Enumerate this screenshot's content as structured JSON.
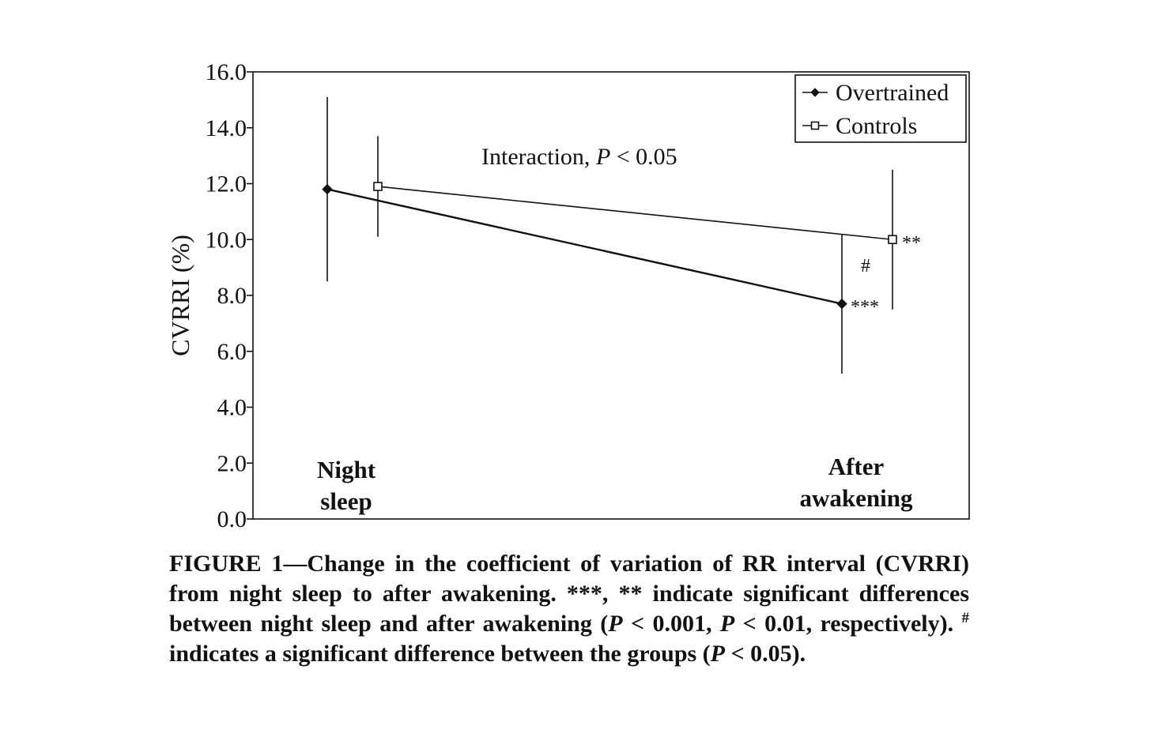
{
  "chart_data": {
    "type": "line",
    "ylabel": "CVRRI (%)",
    "ylim": [
      0,
      16
    ],
    "yticks": [
      "0.0",
      "2.0",
      "4.0",
      "6.0",
      "8.0",
      "10.0",
      "12.0",
      "14.0",
      "16.0"
    ],
    "categories": [
      "Night sleep",
      "After awakening"
    ],
    "category_labels": [
      [
        "Night",
        "sleep"
      ],
      [
        "After",
        "awakening"
      ]
    ],
    "series": [
      {
        "name": "Overtrained",
        "marker": "filled-diamond",
        "values": [
          11.8,
          7.7
        ],
        "error_low": [
          8.5,
          5.2
        ],
        "error_high": [
          15.1,
          10.2
        ]
      },
      {
        "name": "Controls",
        "marker": "open-square",
        "values": [
          11.9,
          10.0
        ],
        "error_low": [
          10.1,
          7.5
        ],
        "error_high": [
          13.7,
          12.5
        ]
      }
    ],
    "annotations": {
      "interaction_prefix": "Interaction, ",
      "interaction_p": "P",
      "interaction_suffix": " < 0.05",
      "overtrained_sig": "***",
      "controls_sig": "**",
      "group_diff": "#"
    },
    "legend_position": "top-right",
    "grid": false
  },
  "caption": {
    "part1": "FIGURE 1—Change in the coefficient of variation of RR interval (CVRRI) from night sleep to after awakening. ***, ** indicate significant differences between night sleep and after awakening (",
    "p1": "P",
    "part2": " < 0.001, ",
    "p2": "P",
    "part3": " < 0.01, respectively). ",
    "sup": "#",
    "part4": " indicates a significant difference between the groups (",
    "p3": "P",
    "part5": " < 0.05)."
  }
}
